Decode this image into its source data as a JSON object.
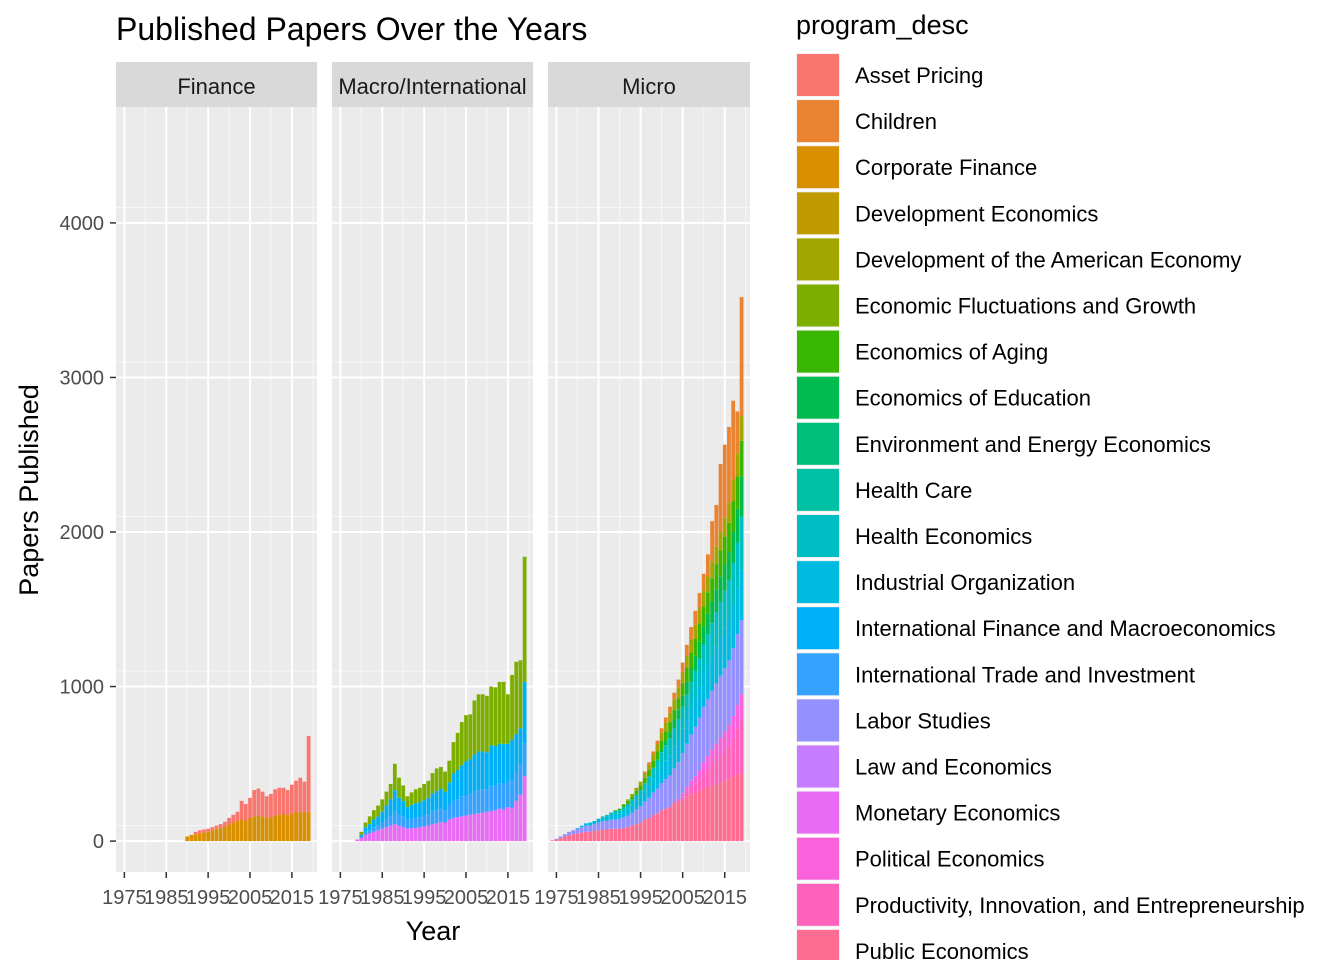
{
  "chart_data": {
    "type": "bar",
    "stacked": true,
    "title": "Published Papers Over the Years",
    "xlabel": "Year",
    "ylabel": "Papers Published",
    "xlim": [
      1973,
      2021
    ],
    "ylim": [
      -200,
      4750
    ],
    "y_ticks": [
      0,
      1000,
      2000,
      3000,
      4000
    ],
    "x_ticks": [
      1975,
      1985,
      1995,
      2005,
      2015
    ],
    "grid": true,
    "legend_title": "program_desc",
    "legend_position": "right",
    "categories": [
      {
        "name": "Asset Pricing",
        "color": "#F8766D"
      },
      {
        "name": "Children",
        "color": "#EA8331"
      },
      {
        "name": "Corporate Finance",
        "color": "#D89000"
      },
      {
        "name": "Development Economics",
        "color": "#C09B00"
      },
      {
        "name": "Development of the American Economy",
        "color": "#A3A500"
      },
      {
        "name": "Economic Fluctuations and Growth",
        "color": "#7CAE00"
      },
      {
        "name": "Economics of Aging",
        "color": "#39B600"
      },
      {
        "name": "Economics of Education",
        "color": "#00BB4E"
      },
      {
        "name": "Environment and Energy Economics",
        "color": "#00BF7D"
      },
      {
        "name": "Health Care",
        "color": "#00C1A3"
      },
      {
        "name": "Health Economics",
        "color": "#00BFC4"
      },
      {
        "name": "Industrial Organization",
        "color": "#00BAE0"
      },
      {
        "name": "International Finance and Macroeconomics",
        "color": "#00B0F6"
      },
      {
        "name": "International Trade and Investment",
        "color": "#35A2FF"
      },
      {
        "name": "Labor Studies",
        "color": "#9590FF"
      },
      {
        "name": "Law and Economics",
        "color": "#C77CFF"
      },
      {
        "name": "Monetary Economics",
        "color": "#E76BF3"
      },
      {
        "name": "Political Economics",
        "color": "#FA62DB"
      },
      {
        "name": "Productivity, Innovation, and Entrepreneurship",
        "color": "#FF62BC"
      },
      {
        "name": "Public Economics",
        "color": "#FF6C91"
      }
    ],
    "facets": [
      {
        "name": "Finance",
        "years": [
          1990,
          1991,
          1992,
          1993,
          1994,
          1995,
          1996,
          1997,
          1998,
          1999,
          2000,
          2001,
          2002,
          2003,
          2004,
          2005,
          2006,
          2007,
          2008,
          2009,
          2010,
          2011,
          2012,
          2013,
          2014,
          2015,
          2016,
          2017,
          2018,
          2019
        ],
        "series": [
          {
            "name": "Corporate Finance",
            "values": [
              30,
              40,
              45,
              50,
              55,
              60,
              70,
              80,
              85,
              95,
              110,
              120,
              130,
              140,
              130,
              150,
              160,
              165,
              160,
              150,
              155,
              165,
              170,
              175,
              165,
              180,
              185,
              190,
              185,
              190
            ]
          },
          {
            "name": "Asset Pricing",
            "values": [
              0,
              0,
              15,
              20,
              20,
              20,
              20,
              20,
              25,
              30,
              40,
              50,
              60,
              120,
              110,
              130,
              170,
              175,
              160,
              140,
              150,
              170,
              175,
              170,
              165,
              185,
              205,
              220,
              200,
              490
            ]
          }
        ]
      },
      {
        "name": "Macro/International",
        "years": [
          1975,
          1976,
          1977,
          1978,
          1979,
          1980,
          1981,
          1982,
          1983,
          1984,
          1985,
          1986,
          1987,
          1988,
          1989,
          1990,
          1991,
          1992,
          1993,
          1994,
          1995,
          1996,
          1997,
          1998,
          1999,
          2000,
          2001,
          2002,
          2003,
          2004,
          2005,
          2006,
          2007,
          2008,
          2009,
          2010,
          2011,
          2012,
          2013,
          2014,
          2015,
          2016,
          2017,
          2018,
          2019
        ],
        "series": [
          {
            "name": "Monetary Economics",
            "values": [
              0,
              0,
              0,
              0,
              10,
              20,
              40,
              50,
              60,
              70,
              80,
              90,
              100,
              110,
              100,
              90,
              80,
              85,
              85,
              90,
              95,
              100,
              110,
              115,
              125,
              120,
              140,
              150,
              155,
              160,
              165,
              170,
              175,
              180,
              185,
              190,
              195,
              200,
              210,
              205,
              220,
              215,
              260,
              300,
              420
            ]
          },
          {
            "name": "International Trade and Investment",
            "values": [
              0,
              0,
              0,
              0,
              0,
              10,
              20,
              20,
              30,
              30,
              40,
              50,
              60,
              80,
              70,
              70,
              60,
              60,
              65,
              65,
              70,
              70,
              80,
              85,
              85,
              80,
              100,
              110,
              115,
              130,
              130,
              135,
              145,
              150,
              150,
              145,
              165,
              160,
              165,
              165,
              165,
              175,
              190,
              195,
              210
            ]
          },
          {
            "name": "International Finance and Macroeconomics",
            "values": [
              0,
              0,
              0,
              0,
              0,
              10,
              30,
              40,
              50,
              60,
              70,
              90,
              110,
              140,
              110,
              100,
              80,
              90,
              95,
              95,
              100,
              110,
              120,
              125,
              130,
              120,
              140,
              180,
              190,
              200,
              220,
              225,
              240,
              250,
              245,
              240,
              260,
              255,
              255,
              260,
              245,
              265,
              240,
              235,
              400
            ]
          },
          {
            "name": "Economic Fluctuations and Growth",
            "values": [
              0,
              0,
              0,
              0,
              0,
              20,
              30,
              50,
              60,
              70,
              80,
              90,
              100,
              170,
              130,
              100,
              70,
              80,
              90,
              95,
              105,
              110,
              130,
              145,
              140,
              130,
              140,
              200,
              240,
              280,
              300,
              290,
              350,
              370,
              370,
              365,
              380,
              380,
              400,
              400,
              320,
              420,
              470,
              440,
              810
            ]
          }
        ]
      },
      {
        "name": "Micro",
        "years": [
          1974,
          1975,
          1976,
          1977,
          1978,
          1979,
          1980,
          1981,
          1982,
          1983,
          1984,
          1985,
          1986,
          1987,
          1988,
          1989,
          1990,
          1991,
          1992,
          1993,
          1994,
          1995,
          1996,
          1997,
          1998,
          1999,
          2000,
          2001,
          2002,
          2003,
          2004,
          2005,
          2006,
          2007,
          2008,
          2009,
          2010,
          2011,
          2012,
          2013,
          2014,
          2015,
          2016,
          2017,
          2018,
          2019
        ],
        "series": [
          {
            "name": "Public Economics",
            "values": [
              5,
              10,
              20,
              30,
              40,
              45,
              50,
              55,
              60,
              60,
              65,
              70,
              75,
              75,
              80,
              80,
              80,
              85,
              90,
              100,
              110,
              120,
              140,
              150,
              170,
              180,
              200,
              210,
              220,
              240,
              250,
              260,
              280,
              300,
              310,
              320,
              340,
              350,
              360,
              370,
              380,
              390,
              400,
              420,
              430,
              440
            ]
          },
          {
            "name": "Productivity, Innovation, and Entrepreneurship",
            "values": [
              0,
              0,
              0,
              0,
              0,
              0,
              0,
              0,
              0,
              0,
              0,
              0,
              0,
              0,
              0,
              0,
              0,
              0,
              0,
              0,
              0,
              0,
              0,
              0,
              0,
              0,
              0,
              0,
              0,
              10,
              20,
              30,
              40,
              50,
              60,
              80,
              100,
              120,
              140,
              160,
              180,
              200,
              220,
              250,
              300,
              350
            ]
          },
          {
            "name": "Political Economics",
            "values": [
              0,
              0,
              0,
              0,
              0,
              0,
              0,
              0,
              0,
              0,
              0,
              0,
              0,
              0,
              0,
              0,
              0,
              0,
              0,
              0,
              0,
              0,
              0,
              0,
              0,
              0,
              0,
              0,
              0,
              0,
              0,
              20,
              30,
              40,
              50,
              60,
              70,
              80,
              90,
              100,
              110,
              120,
              130,
              140,
              150,
              160
            ]
          },
          {
            "name": "Labor Studies",
            "values": [
              0,
              5,
              10,
              15,
              20,
              25,
              30,
              35,
              40,
              40,
              45,
              50,
              55,
              55,
              60,
              60,
              65,
              70,
              75,
              85,
              95,
              105,
              115,
              130,
              145,
              160,
              175,
              190,
              205,
              220,
              240,
              260,
              280,
              300,
              320,
              340,
              360,
              370,
              380,
              390,
              400,
              410,
              420,
              440,
              460,
              480
            ]
          },
          {
            "name": "Industrial Organization",
            "values": [
              0,
              0,
              0,
              0,
              0,
              0,
              5,
              10,
              15,
              20,
              20,
              25,
              25,
              30,
              30,
              35,
              35,
              40,
              45,
              50,
              55,
              60,
              70,
              80,
              90,
              100,
              110,
              120,
              130,
              140,
              150,
              160,
              170,
              180,
              190,
              200,
              210,
              220,
              230,
              240,
              250,
              260,
              270,
              280,
              300,
              320
            ]
          },
          {
            "name": "Health Economics",
            "values": [
              0,
              0,
              0,
              0,
              0,
              0,
              0,
              0,
              0,
              0,
              0,
              0,
              5,
              10,
              15,
              20,
              20,
              25,
              30,
              35,
              40,
              45,
              50,
              60,
              70,
              80,
              90,
              100,
              110,
              120,
              130,
              140,
              150,
              160,
              170,
              180,
              190,
              200,
              210,
              220,
              230,
              240,
              250,
              270,
              290,
              350
            ]
          },
          {
            "name": "Economics of Education",
            "values": [
              0,
              0,
              0,
              0,
              0,
              0,
              0,
              0,
              0,
              0,
              0,
              0,
              0,
              0,
              0,
              0,
              0,
              0,
              0,
              0,
              0,
              0,
              0,
              0,
              0,
              10,
              20,
              30,
              40,
              50,
              60,
              70,
              80,
              90,
              100,
              110,
              120,
              130,
              140,
              150,
              160,
              170,
              180,
              200,
              220,
              260
            ]
          },
          {
            "name": "Economics of Aging",
            "values": [
              0,
              0,
              0,
              0,
              0,
              0,
              0,
              0,
              0,
              0,
              0,
              0,
              0,
              0,
              0,
              5,
              10,
              15,
              20,
              20,
              25,
              30,
              35,
              40,
              45,
              50,
              55,
              60,
              65,
              70,
              75,
              80,
              90,
              100,
              110,
              120,
              130,
              140,
              150,
              160,
              170,
              180,
              190,
              200,
              210,
              230
            ]
          },
          {
            "name": "Development of the American Economy",
            "values": [
              0,
              0,
              0,
              0,
              0,
              0,
              0,
              0,
              0,
              0,
              0,
              0,
              0,
              0,
              0,
              0,
              0,
              5,
              10,
              15,
              20,
              25,
              30,
              35,
              40,
              45,
              50,
              55,
              60,
              65,
              70,
              75,
              80,
              85,
              90,
              95,
              100,
              105,
              110,
              115,
              120,
              125,
              130,
              140,
              150,
              160
            ]
          },
          {
            "name": "Children",
            "values": [
              0,
              0,
              0,
              0,
              0,
              0,
              0,
              0,
              0,
              0,
              0,
              0,
              0,
              0,
              0,
              0,
              0,
              0,
              0,
              0,
              0,
              0,
              10,
              15,
              20,
              25,
              30,
              35,
              40,
              45,
              50,
              60,
              70,
              80,
              90,
              100,
              110,
              140,
              260,
              270,
              440,
              470,
              490,
              510,
              270,
              770
            ]
          }
        ]
      }
    ]
  }
}
